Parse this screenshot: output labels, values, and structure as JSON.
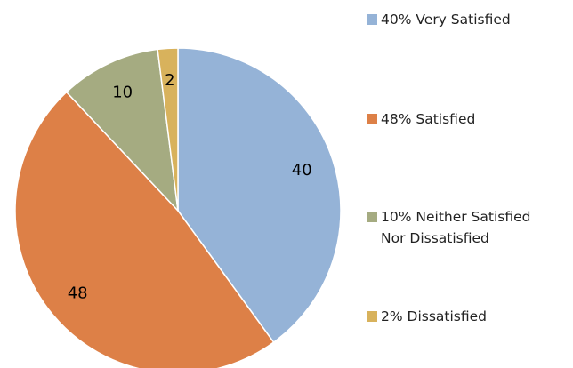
{
  "chart_data": {
    "type": "pie",
    "categories": [
      "40% Very Satisfied",
      "48% Satisfied",
      "10% Neither Satisfied Nor Dissatisfied",
      "2% Dissatisfied"
    ],
    "values": [
      40,
      48,
      10,
      2
    ],
    "colors": [
      "#95b3d7",
      "#dd8047",
      "#a5ab81",
      "#d8b25c"
    ],
    "legend": "right"
  }
}
